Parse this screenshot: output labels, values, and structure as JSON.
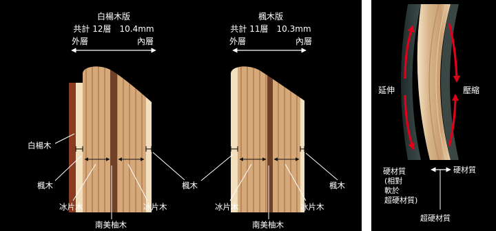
{
  "left_diagram": {
    "title": "白楊木版",
    "spec": "共計 12層　10.4mm",
    "outer_label": "外層",
    "inner_label": "內層"
  },
  "middle_diagram": {
    "title": "楓木版",
    "spec": "共計 11層　10.3mm",
    "outer_label": "外層",
    "inner_label": "內層"
  },
  "labels": {
    "poplar": "白楊木",
    "maple": "楓木",
    "ice_wood": "冰片木",
    "nanmei": "南美柚木"
  },
  "right_diagram": {
    "stretch": "延伸",
    "compress": "壓縮",
    "hard_material": "硬材質",
    "relative_note": [
      "硬材質",
      "(相對",
      "軟於",
      "超硬材質)"
    ],
    "super_hard": "超硬材質"
  },
  "colors": {
    "background": "#000000",
    "text": "#ffffff",
    "arrow_red": "#e0001a",
    "wood_light": "#d8ac80",
    "wood_edge": "#f5e6c8",
    "nanmei": "#6e4128",
    "poplar_outer": "#8a3b22"
  }
}
